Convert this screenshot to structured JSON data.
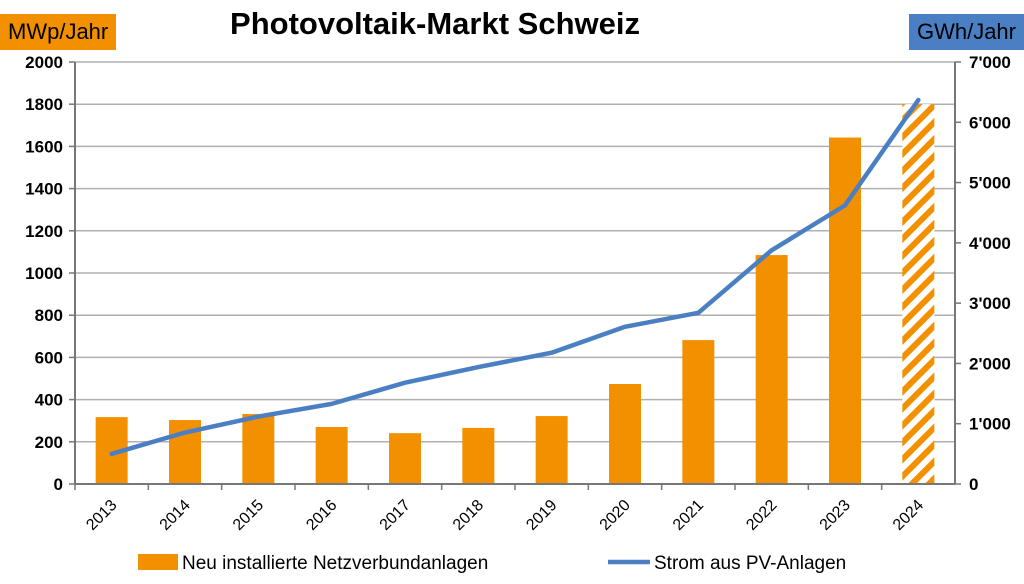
{
  "chart_data": {
    "type": "bar+line",
    "title": "Photovoltaik-Markt Schweiz",
    "y_left_unit": "MWp/Jahr",
    "y_right_unit": "GWh/Jahr",
    "categories": [
      "2013",
      "2014",
      "2015",
      "2016",
      "2017",
      "2018",
      "2019",
      "2020",
      "2021",
      "2022",
      "2023",
      "2024"
    ],
    "ylim_left": [
      0,
      2000
    ],
    "ylim_right": [
      0,
      7000
    ],
    "left_ticks": [
      "0",
      "200",
      "400",
      "600",
      "800",
      "1000",
      "1200",
      "1400",
      "1600",
      "1800",
      "2000"
    ],
    "right_ticks": [
      "0",
      "1'000",
      "2'000",
      "3'000",
      "4'000",
      "5'000",
      "6'000",
      "7'000"
    ],
    "grid": true,
    "legend_position": "bottom",
    "series": [
      {
        "name": "Neu installierte Netzverbundanlagen",
        "type": "bar",
        "axis": "left",
        "color": "#f39000",
        "values": [
          317,
          303,
          332,
          270,
          241,
          266,
          322,
          474,
          682,
          1085,
          1642,
          1800
        ],
        "hatched": [
          false,
          false,
          false,
          false,
          false,
          false,
          false,
          false,
          false,
          false,
          false,
          true
        ]
      },
      {
        "name": "Strom aus PV-Anlagen",
        "type": "line",
        "axis": "right",
        "color": "#4a7fc4",
        "values": [
          500,
          854,
          1119,
          1329,
          1680,
          1940,
          2178,
          2608,
          2840,
          3877,
          4622,
          6370
        ]
      }
    ]
  }
}
